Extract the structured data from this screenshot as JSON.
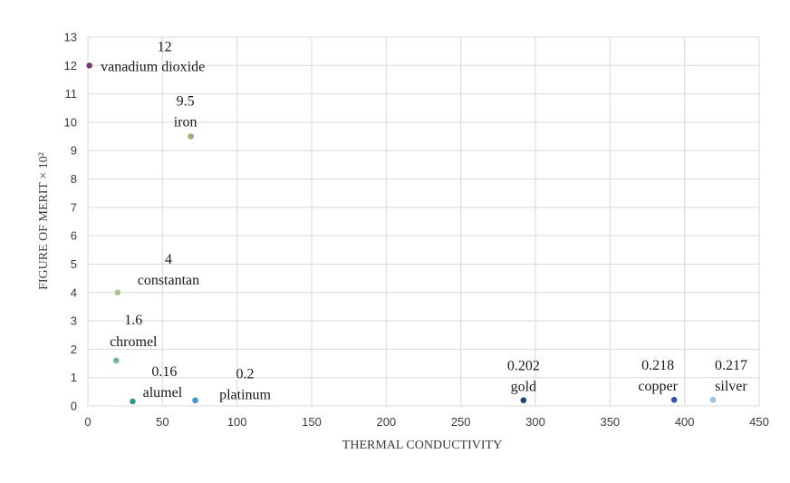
{
  "chart_data": {
    "type": "scatter",
    "xlabel": "THERMAL CONDUCTIVITY",
    "ylabel": "FIGURE OF MERIT × 10²",
    "xlim": [
      0,
      450
    ],
    "ylim": [
      0,
      13
    ],
    "xticks": [
      0,
      50,
      100,
      150,
      200,
      250,
      300,
      350,
      400,
      450
    ],
    "yticks": [
      0,
      1,
      2,
      3,
      4,
      5,
      6,
      7,
      8,
      9,
      10,
      11,
      12,
      13
    ],
    "grid": true,
    "points": [
      {
        "name": "vanadium dioxide",
        "value_label": "12",
        "x": 1,
        "y": 12,
        "color": "#7b3a6e"
      },
      {
        "name": "iron",
        "value_label": "9.5",
        "x": 69,
        "y": 9.5,
        "color": "#9aae78"
      },
      {
        "name": "constantan",
        "value_label": "4",
        "x": 20,
        "y": 4,
        "color": "#a7c58a"
      },
      {
        "name": "chromel",
        "value_label": "1.6",
        "x": 19,
        "y": 1.6,
        "color": "#6fb59c"
      },
      {
        "name": "alumel",
        "value_label": "0.16",
        "x": 30,
        "y": 0.16,
        "color": "#2f9c8c"
      },
      {
        "name": "platinum",
        "value_label": "0.2",
        "x": 72,
        "y": 0.2,
        "color": "#3f96d0"
      },
      {
        "name": "gold",
        "value_label": "0.202",
        "x": 292,
        "y": 0.202,
        "color": "#1f3f78"
      },
      {
        "name": "copper",
        "value_label": "0.218",
        "x": 393,
        "y": 0.218,
        "color": "#3c4f9b"
      },
      {
        "name": "silver",
        "value_label": "0.217",
        "x": 419,
        "y": 0.217,
        "color": "#9cc3e6"
      }
    ]
  }
}
